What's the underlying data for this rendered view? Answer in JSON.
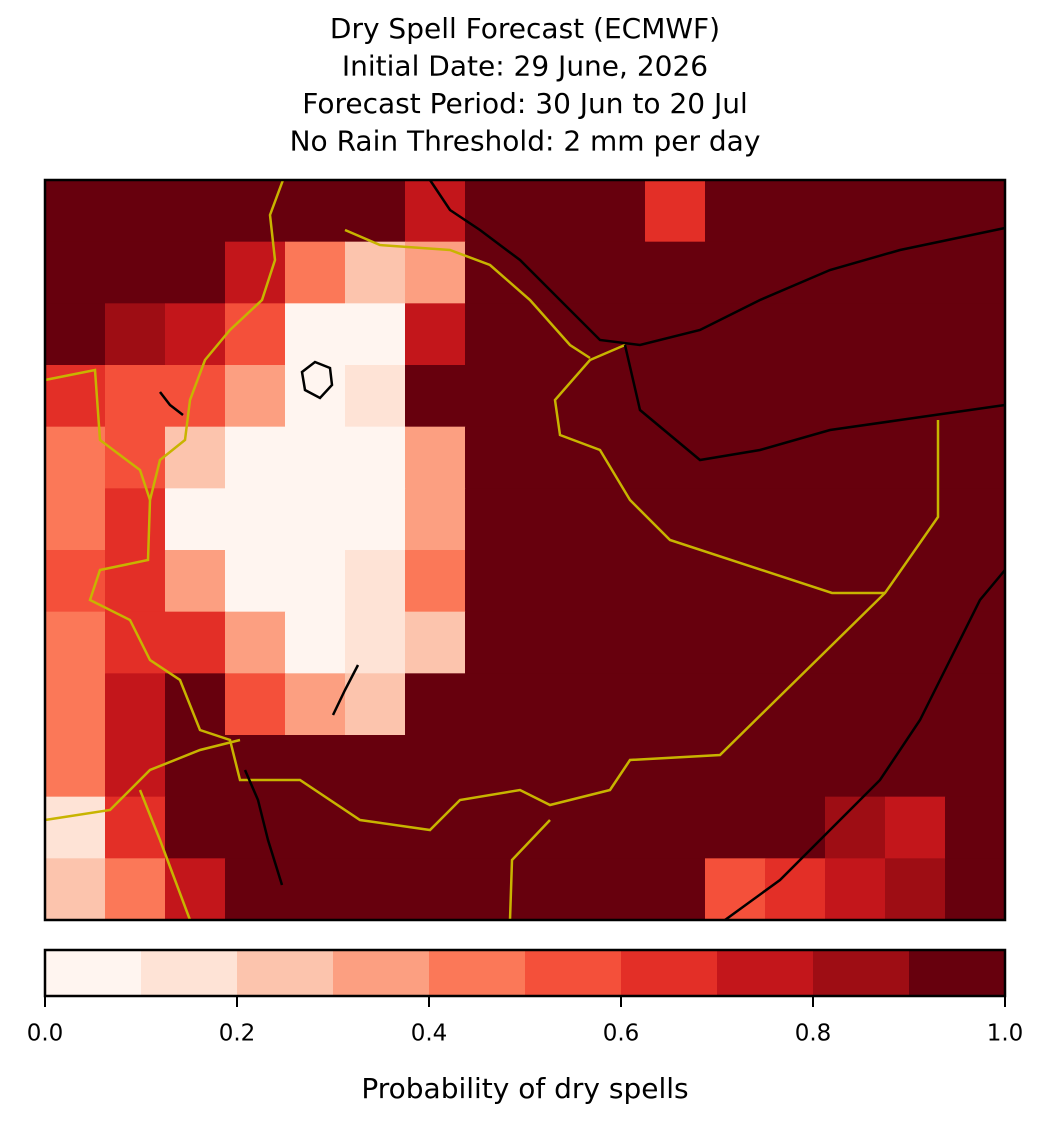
{
  "chart_data": {
    "type": "heatmap",
    "title": [
      "Dry Spell Forecast (ECMWF)",
      "Initial Date: 29 June, 2026",
      "Forecast Period: 30 Jun to 20 Jul",
      "No Rain Threshold: 2 mm per day"
    ],
    "values": [
      [
        1,
        1,
        1,
        1,
        1,
        0.9,
        0.7,
        1,
        1,
        1,
        0.6,
        1,
        1,
        1,
        1,
        1
      ],
      [
        1,
        1,
        0.9,
        0.7,
        0.4,
        0.2,
        0.3,
        1,
        1,
        1,
        1,
        0.9,
        1,
        1,
        1,
        1
      ],
      [
        0.95,
        0.8,
        0.7,
        0.5,
        0.05,
        0.05,
        0.7,
        1,
        1,
        1,
        1,
        1,
        1,
        1,
        1,
        1
      ],
      [
        0.6,
        0.5,
        0.5,
        0.3,
        0.05,
        0.1,
        0.9,
        1,
        1,
        1,
        1,
        1,
        1,
        1,
        1,
        1
      ],
      [
        0.4,
        0.5,
        0.2,
        0.05,
        0,
        0.05,
        0.3,
        1,
        1,
        1,
        1,
        1,
        1,
        1,
        1,
        1
      ],
      [
        0.4,
        0.6,
        0.05,
        0,
        0,
        0,
        0.3,
        1,
        1,
        1,
        1,
        1,
        1,
        1,
        1,
        1
      ],
      [
        0.5,
        0.6,
        0.3,
        0.05,
        0,
        0.1,
        0.4,
        0.9,
        1,
        1,
        1,
        1,
        1,
        1,
        1,
        1
      ],
      [
        0.4,
        0.6,
        0.6,
        0.3,
        0.05,
        0.1,
        0.2,
        1,
        1,
        1,
        1,
        1,
        1,
        1,
        1,
        1
      ],
      [
        0.4,
        0.7,
        0.9,
        0.5,
        0.3,
        0.2,
        1,
        1,
        1,
        1,
        1,
        1,
        1,
        1,
        1,
        1
      ],
      [
        0.4,
        0.7,
        1,
        1,
        1,
        1,
        1,
        1,
        1,
        1,
        1,
        1,
        1,
        1,
        1,
        1
      ],
      [
        0.1,
        0.6,
        0.9,
        1,
        1,
        1,
        1,
        1,
        1,
        1,
        1,
        1,
        1,
        0.8,
        0.7,
        1
      ],
      [
        0.2,
        0.4,
        0.7,
        1,
        1,
        1,
        1,
        1,
        1,
        1,
        1,
        0.5,
        0.6,
        0.7,
        0.8,
        1
      ]
    ],
    "colors": [
      "#fff5f0",
      "#fee3d6",
      "#fcc4ad",
      "#fc9f81",
      "#fb7858",
      "#f4503a",
      "#e32f27",
      "#c3161b",
      "#9e0d14",
      "#67000d"
    ],
    "clim": [
      0,
      1
    ],
    "ticks": [
      {
        "value": 0,
        "label": "0.0"
      },
      0.2,
      0.4,
      0.6,
      0.8,
      {
        "value": 1,
        "label": "1.0"
      }
    ],
    "colorbar_label": "Probability of dry spells"
  }
}
